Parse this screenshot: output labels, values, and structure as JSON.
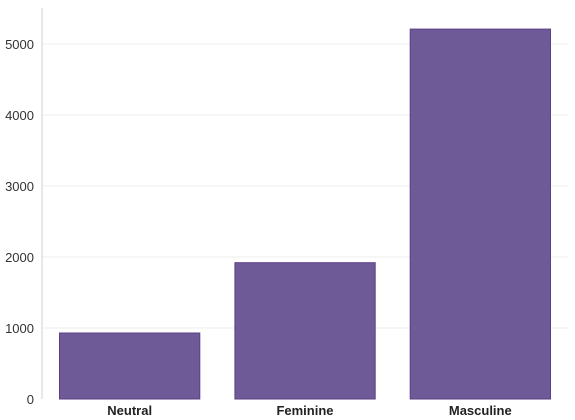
{
  "chart_data": {
    "type": "bar",
    "categories": [
      "Neutral",
      "Feminine",
      "Masculine"
    ],
    "values": [
      930,
      1920,
      5210
    ],
    "ylim": [
      0,
      5500
    ],
    "yticks": [
      0,
      1000,
      2000,
      3000,
      4000,
      5000
    ],
    "grid": true,
    "colors": {
      "bar": "#6f5a98",
      "bar_edge": "#5a3f86"
    }
  }
}
